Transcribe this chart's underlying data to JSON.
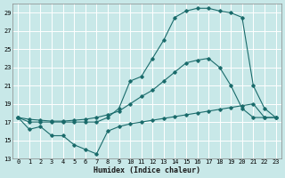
{
  "xlabel": "Humidex (Indice chaleur)",
  "bg_color": "#c8e8e8",
  "grid_color": "#ffffff",
  "line_color": "#1a6b6b",
  "xlim": [
    -0.5,
    23.5
  ],
  "ylim": [
    13,
    30
  ],
  "yticks": [
    13,
    15,
    17,
    19,
    21,
    23,
    25,
    27,
    29
  ],
  "xticks": [
    0,
    1,
    2,
    3,
    4,
    5,
    6,
    7,
    8,
    9,
    10,
    11,
    12,
    13,
    14,
    15,
    16,
    17,
    18,
    19,
    20,
    21,
    22,
    23
  ],
  "line1_x": [
    0,
    1,
    2,
    3,
    4,
    5,
    6,
    7,
    8,
    9,
    10,
    11,
    12,
    13,
    14,
    15,
    16,
    17,
    18,
    19,
    20,
    21,
    22,
    23
  ],
  "line1_y": [
    17.5,
    16.2,
    16.5,
    15.5,
    15.5,
    14.5,
    14.0,
    13.5,
    16.0,
    16.5,
    16.8,
    17.0,
    17.2,
    17.4,
    17.6,
    17.8,
    18.0,
    18.2,
    18.4,
    18.6,
    18.8,
    19.0,
    17.5,
    17.5
  ],
  "line2_x": [
    0,
    1,
    2,
    3,
    4,
    5,
    6,
    7,
    8,
    9,
    10,
    11,
    12,
    13,
    14,
    15,
    16,
    17,
    18,
    19,
    20,
    21,
    22,
    23
  ],
  "line2_y": [
    17.5,
    17.3,
    17.2,
    17.1,
    17.1,
    17.2,
    17.3,
    17.5,
    17.8,
    18.2,
    19.0,
    19.8,
    20.5,
    21.5,
    22.5,
    23.5,
    23.8,
    24.0,
    23.0,
    21.0,
    18.5,
    17.5,
    17.5,
    17.5
  ],
  "line3_x": [
    0,
    1,
    2,
    3,
    4,
    5,
    6,
    7,
    8,
    9,
    10,
    11,
    12,
    13,
    14,
    15,
    16,
    17,
    18,
    19,
    20,
    21,
    22,
    23
  ],
  "line3_y": [
    17.5,
    17.0,
    17.0,
    17.0,
    17.0,
    17.0,
    17.0,
    17.0,
    17.5,
    18.5,
    21.5,
    22.0,
    24.0,
    26.0,
    28.5,
    29.2,
    29.5,
    29.5,
    29.2,
    29.0,
    28.5,
    21.0,
    18.5,
    17.5
  ]
}
